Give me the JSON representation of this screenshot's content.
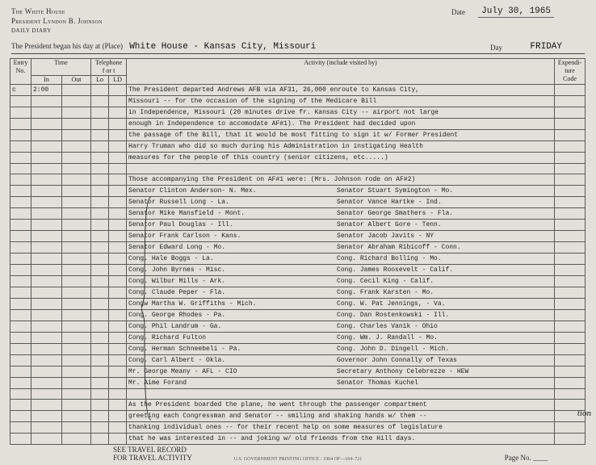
{
  "header": {
    "org": "The White House",
    "pres": "President Lyndon B. Johnson",
    "kind": "daily diary",
    "date_label": "Date",
    "date_value": "July 30, 1965",
    "began_label": "The President began his day at (Place)",
    "place": "White House - Kansas City, Missouri",
    "day_label": "Day",
    "day_value": "FRIDAY"
  },
  "cols": {
    "entry": "Entry\nNo.",
    "time": "Time",
    "in": "In",
    "out": "Out",
    "phone": "Telephone\nf or t",
    "lo": "Lo",
    "ld": "LD",
    "activity": "Activity (include visited by)",
    "exp": "Expendi-\nture\nCode"
  },
  "entry_mark": "c",
  "entry_time": "2:00",
  "lines": [
    "The President departed Andrews AFB via AF31, 26,000 enroute to Kansas City,",
    "         Missouri -- for the occasion of the signing of the Medicare Bill",
    "in Independence, Missouri (20 minutes drive fr. Kansas City -- airport not large",
    "enough in Independence to accomodate AF#1).  The President had decided upon",
    "the passage of the Bill, that it would be most fitting to sign it w/ Former President",
    "Harry Truman who did so much during his Administration in instigating Health",
    "measures for the people of this country (senior citizens, etc.....)",
    "",
    "Those accompanying the President on AF#1 were:  (Mrs. Johnson rode on AF#2)"
  ],
  "pairs": [
    [
      "Senator Clinton Anderson- N. Mex.",
      "Senator Stuart Symington - Mo."
    ],
    [
      "Senator Russell Long - La.",
      "Senator Vance Hartke - Ind."
    ],
    [
      "Senator Mike Mansfield - Mont.",
      "Senator George Smathers - Fla."
    ],
    [
      "Senator Paul Douglas - Ill.",
      "Senator Albert Gore - Tenn."
    ],
    [
      "Senator Frank Carlson - Kans.",
      "Senator Jacob Javits - NY"
    ],
    [
      "Senator Edward Long - Mo.",
      "Senator Abraham Ribicoff - Conn."
    ],
    [
      "Cong. Hale Boggs - La.",
      "Cong. Richard Bolling - Mo."
    ],
    [
      "Cong. John Byrnes - Misc.",
      "Cong. James Roosevelt - Calif."
    ],
    [
      "Cong. Wilbur Mills - Ark.",
      "Cong. Cecil King - Calif."
    ],
    [
      "Cong. Claude Peper - Fla.",
      "Cong. Frank Karsten - Mo."
    ],
    [
      "Congw Martha W. Griffiths - Mich.",
      "Cong. W. Pat Jennings, - Va."
    ],
    [
      "Cong. George Rhodes - Pa.",
      "Cong. Dan Rostenkowski - Ill."
    ],
    [
      "Cong. Phil Landrum - Ga.",
      "Cong. Charles Vanik - Ohio"
    ],
    [
      "Cong. Richard  Fulton",
      "Cong. Wm. J. Randall - Mo."
    ],
    [
      "Cong. Herman Schneebeli - Pa.",
      "Cong. John D. Dingell - Mich."
    ],
    [
      "Cong. Carl Albert - Okla.",
      "Governor John Connally of Texas"
    ],
    [
      "Mr. George Meany - AFL - CIO",
      "Secretary Anthony Celebrezze - HEW"
    ],
    [
      "Mr. Aime Forand",
      "Senator Thomas Kuchel"
    ]
  ],
  "closing": [
    "As the President boarded the plane, he went through the passenger compartment",
    "greeting each Congressman and Senator -- smiling and shaking hands w/ them --",
    "thanking individual ones -- for their recent help on some measures of legislature",
    "that he was interested in -- and joking w/ old friends from the Hill days."
  ],
  "footer": {
    "travel1": "SEE TRAVEL RECORD",
    "travel2": "FOR TRAVEL ACTIVITY",
    "gpo": "U.S. GOVERNMENT PRINTING OFFICE : 1964 OF—164–721",
    "pageno_label": "Page No."
  },
  "margin_note": "tion",
  "colors": {
    "bg": "#e2e0d9",
    "rule": "#5a5a55",
    "ink": "#141414"
  }
}
